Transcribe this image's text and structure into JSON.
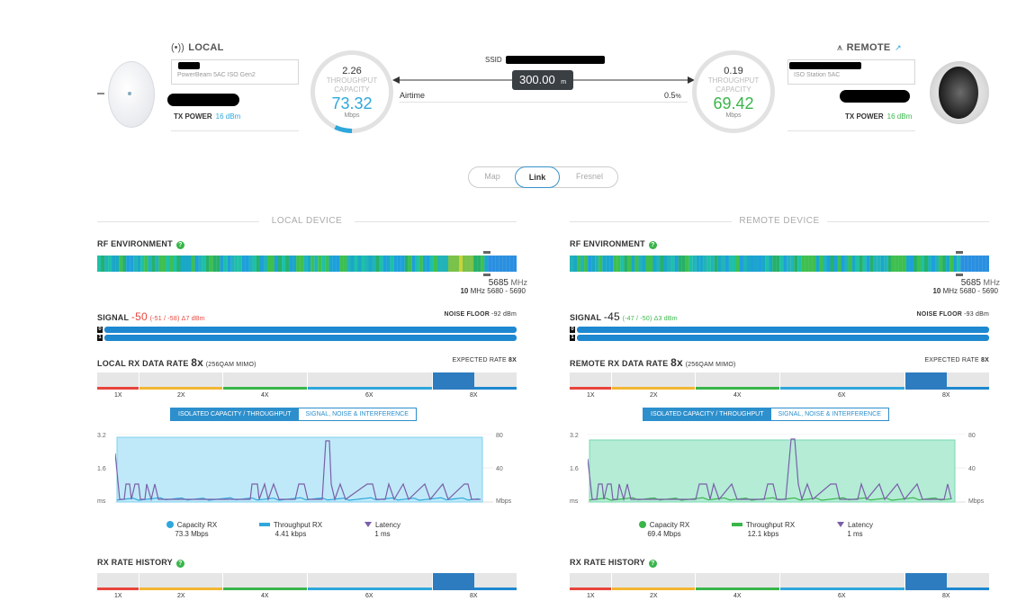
{
  "local": {
    "title": "LOCAL",
    "device_model": "PowerBeam 5AC ISO Gen2",
    "tx_power_label": "TX POWER",
    "tx_power_value": "16 dBm"
  },
  "remote": {
    "title": "REMOTE",
    "device_model": "ISO Station 5AC",
    "tx_power_label": "TX POWER",
    "tx_power_value": "16 dBm"
  },
  "link": {
    "ssid_label": "SSID",
    "distance": "300.00",
    "distance_unit": "m",
    "airtime_label": "Airtime",
    "airtime_value": "0.5",
    "airtime_unit": "%"
  },
  "gauges": {
    "local": {
      "top": "2.26",
      "label1": "THROUGHPUT",
      "label2": "CAPACITY",
      "value": "73.32",
      "unit": "Mbps",
      "fraction": 0.07
    },
    "remote": {
      "top": "0.19",
      "label1": "THROUGHPUT",
      "label2": "CAPACITY",
      "value": "69.42",
      "unit": "Mbps",
      "fraction": 0.0
    }
  },
  "tabs": [
    {
      "label": "Map"
    },
    {
      "label": "Link"
    },
    {
      "label": "Fresnel"
    }
  ],
  "colors": {
    "accent": "#2ea7dc",
    "green": "#39b54a",
    "blue": "#1e88d0",
    "red": "#e8453c"
  },
  "panels": {
    "local": {
      "section": "LOCAL DEVICE",
      "rf_title": "RF ENVIRONMENT",
      "freq": "5685",
      "freq_unit": "MHz",
      "width": "10",
      "width_unit": "MHz",
      "range": "5680 - 5690",
      "signal_label": "SIGNAL",
      "signal_value": "-50",
      "signal_detail": "(-51 / -58) Δ7 dBm",
      "noise_label": "NOISE FLOOR",
      "noise_value": "-92 dBm",
      "chain0": "0",
      "chain1": "1",
      "signal_fraction_0": 1,
      "signal_fraction_1": 1,
      "rate_title": "LOCAL RX DATA RATE",
      "rate_value": "8x",
      "rate_detail": "(256QAM MIMO)",
      "expected_label": "EXPECTED RATE",
      "expected_value": "8X",
      "rate_labels": [
        "1X",
        "2X",
        "4X",
        "6X",
        "8X"
      ],
      "btn_isolated": "ISOLATED CAPACITY / THROUGHPUT",
      "btn_signal": "SIGNAL, NOISE & INTERFERENCE",
      "y_left": [
        "3.2",
        "1.6",
        "ms"
      ],
      "y_right": [
        "80",
        "40",
        "Mbps"
      ],
      "legend": [
        {
          "name": "Capacity RX",
          "value": "73.3 Mbps"
        },
        {
          "name": "Throughput RX",
          "value": "4.41 kbps"
        },
        {
          "name": "Latency",
          "value": "1 ms"
        }
      ],
      "history_title": "RX RATE HISTORY",
      "history_labels": [
        "1X",
        "2X",
        "4X",
        "6X",
        "8X"
      ]
    },
    "remote": {
      "section": "REMOTE DEVICE",
      "rf_title": "RF ENVIRONMENT",
      "freq": "5685",
      "freq_unit": "MHz",
      "width": "10",
      "width_unit": "MHz",
      "range": "5680 - 5690",
      "signal_label": "SIGNAL",
      "signal_value": "-45",
      "signal_detail": "(-47 / -50) Δ3 dBm",
      "noise_label": "NOISE FLOOR",
      "noise_value": "-93 dBm",
      "chain0": "0",
      "chain1": "1",
      "signal_fraction_0": 1,
      "signal_fraction_1": 1,
      "rate_title": "REMOTE RX DATA RATE",
      "rate_value": "8x",
      "rate_detail": "(256QAM MIMO)",
      "expected_label": "EXPECTED RATE",
      "expected_value": "8X",
      "rate_labels": [
        "1X",
        "2X",
        "4X",
        "6X",
        "8X"
      ],
      "btn_isolated": "ISOLATED CAPACITY / THROUGHPUT",
      "btn_signal": "SIGNAL, NOISE & INTERFERENCE",
      "y_left": [
        "3.2",
        "1.6",
        "ms"
      ],
      "y_right": [
        "80",
        "40",
        "Mbps"
      ],
      "legend": [
        {
          "name": "Capacity RX",
          "value": "69.4 Mbps"
        },
        {
          "name": "Throughput RX",
          "value": "12.1 kbps"
        },
        {
          "name": "Latency",
          "value": "1 ms"
        }
      ],
      "history_title": "RX RATE HISTORY",
      "history_labels": [
        "1X",
        "2X",
        "4X",
        "6X",
        "8X"
      ]
    }
  }
}
